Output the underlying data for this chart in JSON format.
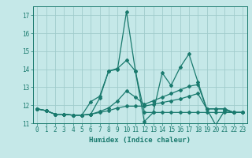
{
  "title": "",
  "xlabel": "Humidex (Indice chaleur)",
  "xlim": [
    -0.5,
    23.5
  ],
  "ylim": [
    11,
    17.5
  ],
  "yticks": [
    11,
    12,
    13,
    14,
    15,
    16,
    17
  ],
  "xticks": [
    0,
    1,
    2,
    3,
    4,
    5,
    6,
    7,
    8,
    9,
    10,
    11,
    12,
    13,
    14,
    15,
    16,
    17,
    18,
    19,
    20,
    21,
    22,
    23
  ],
  "bg_color": "#c5e8e8",
  "grid_color": "#a0cccc",
  "line_color": "#1a7a6e",
  "series": [
    {
      "x": [
        0,
        1,
        2,
        3,
        4,
        5,
        6,
        7,
        8,
        9,
        10,
        11,
        12,
        13,
        14,
        15,
        16,
        17,
        18,
        19,
        20,
        21,
        22,
        23
      ],
      "y": [
        11.8,
        11.7,
        11.5,
        11.5,
        11.45,
        11.45,
        12.2,
        12.5,
        13.9,
        14.0,
        17.2,
        13.9,
        11.1,
        11.6,
        13.8,
        13.1,
        14.1,
        14.85,
        13.3,
        11.8,
        10.9,
        11.7,
        11.6,
        11.6
      ]
    },
    {
      "x": [
        0,
        1,
        2,
        3,
        4,
        5,
        6,
        7,
        8,
        9,
        10,
        11,
        12,
        13,
        14,
        15,
        16,
        17,
        18,
        19,
        20,
        21,
        22,
        23
      ],
      "y": [
        11.8,
        11.7,
        11.5,
        11.5,
        11.45,
        11.45,
        11.5,
        11.6,
        11.7,
        11.85,
        11.95,
        11.95,
        11.95,
        12.05,
        12.15,
        12.25,
        12.35,
        12.5,
        12.65,
        11.8,
        11.8,
        11.8,
        11.6,
        11.6
      ]
    },
    {
      "x": [
        0,
        1,
        2,
        3,
        4,
        5,
        6,
        7,
        8,
        9,
        10,
        11,
        12,
        13,
        14,
        15,
        16,
        17,
        18,
        19,
        20,
        21,
        22,
        23
      ],
      "y": [
        11.8,
        11.7,
        11.5,
        11.5,
        11.45,
        11.45,
        11.5,
        11.65,
        11.85,
        12.25,
        12.8,
        12.45,
        12.05,
        12.25,
        12.45,
        12.65,
        12.85,
        13.05,
        13.15,
        11.8,
        11.8,
        11.8,
        11.6,
        11.6
      ]
    },
    {
      "x": [
        0,
        1,
        2,
        3,
        4,
        5,
        6,
        7,
        8,
        9,
        10,
        11,
        12,
        13,
        14,
        15,
        16,
        17,
        18,
        19,
        20,
        21,
        22,
        23
      ],
      "y": [
        11.8,
        11.7,
        11.5,
        11.5,
        11.45,
        11.45,
        11.5,
        12.4,
        13.9,
        14.05,
        14.5,
        13.9,
        11.6,
        11.6,
        11.6,
        11.6,
        11.6,
        11.6,
        11.6,
        11.6,
        11.6,
        11.6,
        11.6,
        11.6
      ]
    }
  ]
}
